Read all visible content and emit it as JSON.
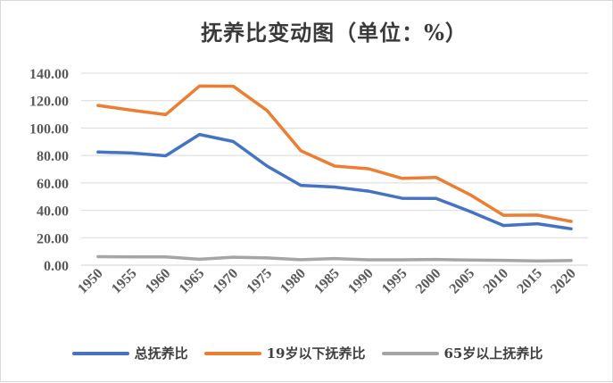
{
  "chart_data": {
    "type": "line",
    "title": "抚养比变动图（单位：%）",
    "categories": [
      "1950",
      "1955",
      "1960",
      "1965",
      "1970",
      "1975",
      "1980",
      "1985",
      "1990",
      "1995",
      "2000",
      "2005",
      "2010",
      "2015",
      "2020"
    ],
    "y_tick_labels": [
      "0.00",
      "20.00",
      "40.00",
      "60.00",
      "80.00",
      "100.00",
      "120.00",
      "140.00"
    ],
    "ylim": [
      0,
      140
    ],
    "grid": true,
    "legend_position": "bottom",
    "series": [
      {
        "name": "总抚养比",
        "color": "#4472C4",
        "values": [
          82.5,
          81.8,
          79.8,
          95.3,
          90.2,
          72.3,
          58.2,
          57.0,
          54.0,
          48.8,
          48.7,
          39.2,
          28.9,
          30.2,
          26.5
        ]
      },
      {
        "name": "19岁以下抚养比",
        "color": "#ED7D31",
        "values": [
          116.5,
          113.0,
          109.8,
          130.6,
          130.5,
          112.8,
          83.5,
          72.3,
          70.3,
          63.3,
          64.0,
          51.5,
          36.4,
          36.5,
          31.9
        ]
      },
      {
        "name": "65岁以上抚养比",
        "color": "#A5A5A5",
        "values": [
          6.2,
          6.0,
          6.0,
          4.3,
          5.8,
          5.3,
          4.0,
          4.8,
          3.9,
          3.9,
          4.2,
          3.7,
          3.5,
          3.1,
          3.4
        ]
      }
    ]
  }
}
